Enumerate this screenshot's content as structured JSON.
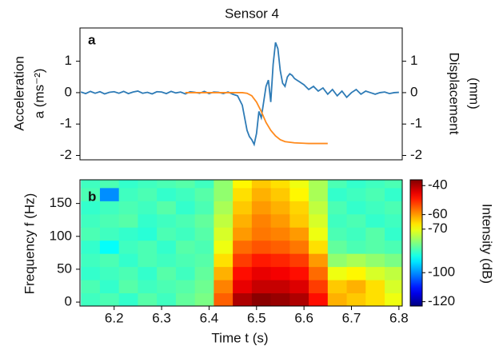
{
  "chart_data": [
    {
      "type": "line",
      "title": "Sensor 4",
      "panel_label": "a",
      "y_label": [
        "Acceleration",
        "a (ms⁻²)"
      ],
      "y2_label": [
        "Displacement",
        "(mm)"
      ],
      "xlim": [
        6.128,
        6.807
      ],
      "ylim": [
        -2.14,
        2.06
      ],
      "yticks": [
        1,
        0,
        -1,
        -2
      ],
      "y2lim": [
        -2.14,
        2.06
      ],
      "y2ticks": [
        1,
        0,
        -1,
        -2
      ],
      "series": [
        {
          "color": "#2e7bb6",
          "x": [
            6.13,
            6.14,
            6.15,
            6.16,
            6.17,
            6.18,
            6.19,
            6.2,
            6.21,
            6.22,
            6.23,
            6.24,
            6.25,
            6.26,
            6.27,
            6.28,
            6.29,
            6.3,
            6.31,
            6.32,
            6.33,
            6.34,
            6.35,
            6.36,
            6.37,
            6.38,
            6.39,
            6.4,
            6.41,
            6.42,
            6.43,
            6.44,
            6.45,
            6.46,
            6.47,
            6.475,
            6.48,
            6.485,
            6.49,
            6.495,
            6.5,
            6.505,
            6.51,
            6.515,
            6.52,
            6.525,
            6.53,
            6.535,
            6.54,
            6.545,
            6.55,
            6.555,
            6.56,
            6.565,
            6.57,
            6.575,
            6.58,
            6.585,
            6.59,
            6.595,
            6.6,
            6.61,
            6.62,
            6.63,
            6.64,
            6.65,
            6.66,
            6.67,
            6.68,
            6.69,
            6.7,
            6.71,
            6.72,
            6.73,
            6.74,
            6.75,
            6.76,
            6.77,
            6.78,
            6.79,
            6.8
          ],
          "values": [
            0.02,
            -0.03,
            0.04,
            -0.02,
            0.03,
            -0.04,
            0.01,
            0.03,
            -0.02,
            0.04,
            -0.03,
            0.02,
            0.05,
            -0.02,
            0.01,
            -0.04,
            0.03,
            0.02,
            -0.03,
            0.04,
            -0.01,
            0.02,
            -0.04,
            0.03,
            0.01,
            -0.02,
            0.04,
            -0.03,
            0.02,
            0.01,
            -0.03,
            0.02,
            -0.05,
            -0.1,
            -0.4,
            -0.8,
            -1.2,
            -1.4,
            -1.5,
            -1.65,
            -1.3,
            -0.6,
            -0.8,
            -0.3,
            0.2,
            0.4,
            -0.3,
            0.9,
            1.6,
            1.4,
            0.7,
            0.3,
            0.2,
            0.5,
            0.6,
            0.55,
            0.45,
            0.4,
            0.35,
            0.3,
            0.25,
            0.1,
            0.2,
            0.05,
            0.15,
            -0.05,
            0.1,
            -0.1,
            0.05,
            -0.15,
            0.0,
            0.1,
            -0.05,
            0.05,
            0.0,
            -0.05,
            0.0,
            0.02,
            -0.03,
            0.0,
            0.01
          ]
        },
        {
          "color": "#ff8a1c",
          "axis": "y2",
          "x": [
            6.35,
            6.4,
            6.45,
            6.47,
            6.48,
            6.49,
            6.5,
            6.51,
            6.52,
            6.53,
            6.54,
            6.55,
            6.56,
            6.58,
            6.61,
            6.65
          ],
          "values": [
            0,
            0,
            0,
            0,
            -0.02,
            -0.1,
            -0.3,
            -0.6,
            -0.95,
            -1.2,
            -1.38,
            -1.5,
            -1.56,
            -1.6,
            -1.62,
            -1.62
          ]
        }
      ]
    },
    {
      "type": "heatmap",
      "panel_label": "b",
      "x_label": "Time t (s)",
      "y_label": "Frequency f (Hz)",
      "xlim": [
        6.128,
        6.807
      ],
      "xticks": [
        6.2,
        6.3,
        6.4,
        6.5,
        6.6,
        6.7,
        6.8
      ],
      "ylim": [
        -6,
        186
      ],
      "yticks": [
        0,
        50,
        100,
        150
      ],
      "x_bins": [
        6.13,
        6.17,
        6.21,
        6.25,
        6.29,
        6.33,
        6.37,
        6.41,
        6.45,
        6.49,
        6.53,
        6.57,
        6.61,
        6.65,
        6.69,
        6.73,
        6.77,
        6.81
      ],
      "y_bins": [
        -6,
        14,
        34,
        54,
        74,
        94,
        114,
        134,
        154,
        174,
        186
      ],
      "values": [
        [
          -85,
          -84,
          -86,
          -83,
          -85,
          -82,
          -80,
          -55,
          -40,
          -37,
          -38,
          -40,
          -48,
          -62,
          -64,
          -66,
          -70
        ],
        [
          -84,
          -86,
          -83,
          -85,
          -84,
          -83,
          -81,
          -58,
          -45,
          -42,
          -42,
          -44,
          -52,
          -64,
          -62,
          -66,
          -72
        ],
        [
          -86,
          -85,
          -84,
          -86,
          -83,
          -85,
          -82,
          -62,
          -48,
          -45,
          -46,
          -48,
          -56,
          -70,
          -68,
          -72,
          -74
        ],
        [
          -85,
          -84,
          -86,
          -84,
          -85,
          -84,
          -83,
          -66,
          -52,
          -49,
          -50,
          -52,
          -60,
          -78,
          -76,
          -78,
          -80
        ],
        [
          -86,
          -90,
          -85,
          -84,
          -86,
          -83,
          -84,
          -70,
          -56,
          -54,
          -55,
          -57,
          -66,
          -82,
          -84,
          -83,
          -84
        ],
        [
          -84,
          -85,
          -86,
          -87,
          -84,
          -85,
          -83,
          -72,
          -60,
          -57,
          -58,
          -60,
          -70,
          -84,
          -85,
          -83,
          -86
        ],
        [
          -85,
          -84,
          -83,
          -86,
          -85,
          -84,
          -82,
          -74,
          -62,
          -58,
          -60,
          -64,
          -72,
          -85,
          -84,
          -86,
          -85
        ],
        [
          -86,
          -85,
          -84,
          -85,
          -83,
          -86,
          -84,
          -76,
          -64,
          -60,
          -62,
          -65,
          -74,
          -84,
          -86,
          -85,
          -84
        ],
        [
          -84,
          -100,
          -85,
          -84,
          -86,
          -85,
          -83,
          -78,
          -66,
          -62,
          -64,
          -68,
          -76,
          -86,
          -85,
          -84,
          -86
        ],
        [
          -85,
          -84,
          -86,
          -85,
          -84,
          -83,
          -85,
          -78,
          -68,
          -64,
          -66,
          -70,
          -76,
          -84,
          -86,
          -85,
          -84
        ]
      ],
      "colormap": "jet",
      "clim": [
        -123,
        -36
      ],
      "cticks": [
        -40,
        -60,
        -70,
        -100,
        -120
      ],
      "c_label": "Intensity (dB)"
    }
  ]
}
